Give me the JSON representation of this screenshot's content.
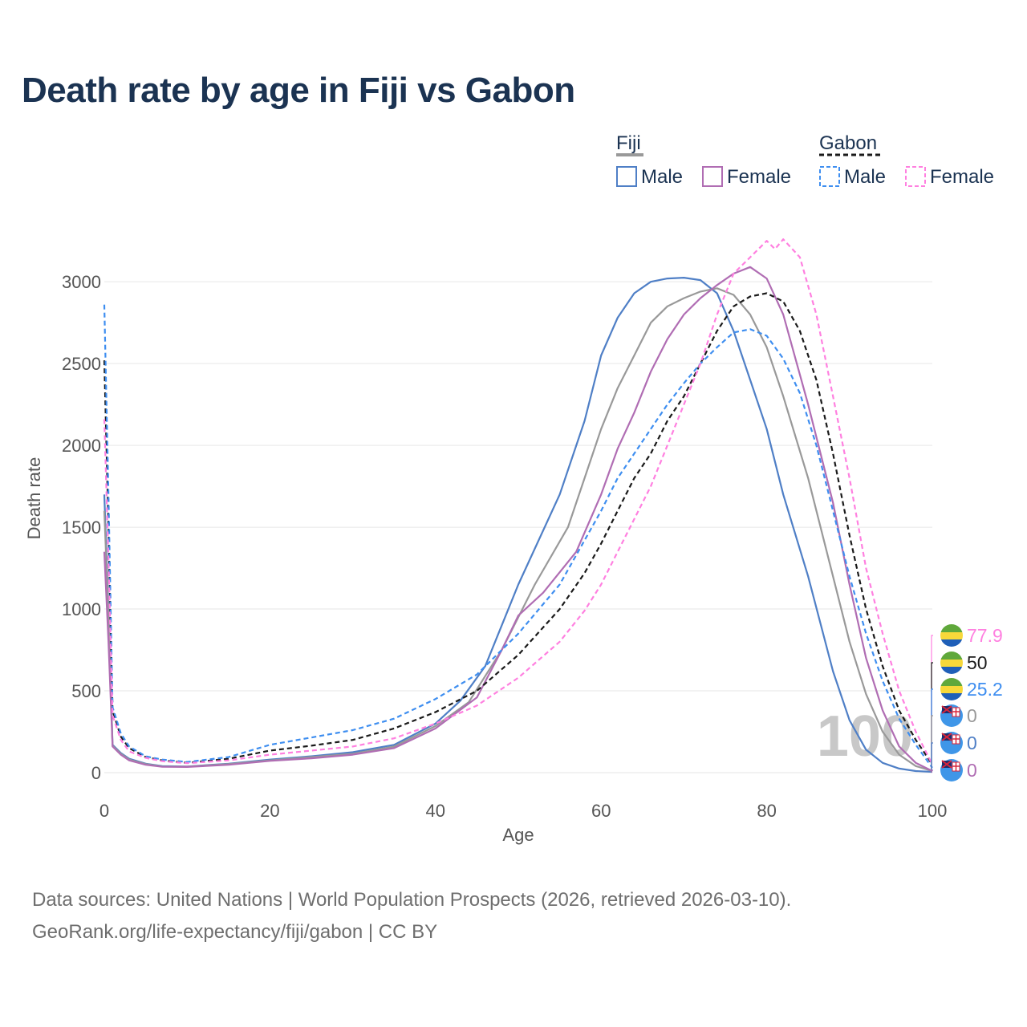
{
  "title": "Death rate by age in Fiji vs Gabon",
  "legend": {
    "group1": "Fiji",
    "group2": "Gabon",
    "items": [
      "Male",
      "Female",
      "Male",
      "Female"
    ]
  },
  "footer": {
    "source": "Data sources: United Nations | World Population Prospects (2026, retrieved 2026-03-10).",
    "link": "GeoRank.org/life-expectancy/fiji/gabon | CC BY"
  },
  "chart_data": {
    "type": "line",
    "xlabel": "Age",
    "ylabel": "Death rate",
    "xlim": [
      0,
      100
    ],
    "ylim": [
      0,
      3300
    ],
    "xticks": [
      0,
      20,
      40,
      60,
      80,
      100
    ],
    "yticks": [
      0,
      500,
      1000,
      1500,
      2000,
      2500,
      3000
    ],
    "watermark": "100",
    "series": [
      {
        "name": "Fiji Male",
        "color": "#4f7fc6",
        "dash": false,
        "x": [
          0,
          0.5,
          1,
          2,
          3,
          5,
          7,
          10,
          15,
          20,
          25,
          30,
          35,
          40,
          43,
          46,
          50,
          55,
          58,
          60,
          62,
          64,
          66,
          68,
          70,
          72,
          74,
          76,
          78,
          80,
          82,
          85,
          88,
          90,
          92,
          94,
          96,
          98,
          100
        ],
        "y": [
          1700,
          1000,
          170,
          120,
          85,
          55,
          40,
          38,
          55,
          80,
          100,
          125,
          170,
          300,
          440,
          650,
          1150,
          1700,
          2150,
          2550,
          2780,
          2930,
          3000,
          3020,
          3025,
          3010,
          2930,
          2700,
          2400,
          2100,
          1700,
          1200,
          620,
          320,
          140,
          60,
          25,
          10,
          5
        ]
      },
      {
        "name": "Fiji Total",
        "color": "#999999",
        "dash": false,
        "x": [
          0,
          0.5,
          1,
          2,
          3,
          5,
          7,
          10,
          15,
          20,
          25,
          30,
          35,
          40,
          44,
          48,
          52,
          56,
          58,
          60,
          62,
          64,
          66,
          68,
          70,
          72,
          74,
          76,
          78,
          80,
          82,
          85,
          88,
          90,
          92,
          94,
          96,
          98,
          100
        ],
        "y": [
          1600,
          950,
          165,
          115,
          80,
          52,
          38,
          37,
          52,
          75,
          95,
          115,
          160,
          285,
          430,
          750,
          1150,
          1500,
          1800,
          2100,
          2350,
          2550,
          2750,
          2850,
          2900,
          2940,
          2960,
          2920,
          2800,
          2600,
          2300,
          1800,
          1200,
          800,
          480,
          250,
          110,
          40,
          10
        ]
      },
      {
        "name": "Fiji Female",
        "color": "#b06db3",
        "dash": false,
        "x": [
          0,
          0.5,
          1,
          2,
          3,
          5,
          7,
          10,
          15,
          20,
          25,
          30,
          35,
          40,
          45,
          48,
          50,
          53,
          57,
          60,
          62,
          64,
          66,
          68,
          70,
          72,
          74,
          76,
          78,
          80,
          82,
          85,
          88,
          90,
          92,
          94,
          96,
          98,
          100
        ],
        "y": [
          1350,
          800,
          160,
          110,
          75,
          48,
          36,
          35,
          48,
          72,
          88,
          110,
          150,
          270,
          460,
          750,
          960,
          1100,
          1350,
          1700,
          1980,
          2200,
          2450,
          2650,
          2800,
          2900,
          2980,
          3050,
          3090,
          3020,
          2800,
          2250,
          1650,
          1150,
          700,
          380,
          160,
          60,
          10
        ]
      },
      {
        "name": "Gabon Total",
        "color": "#1a1a1a",
        "dash": true,
        "x": [
          0,
          0.5,
          1,
          2,
          3,
          5,
          7,
          10,
          15,
          20,
          25,
          30,
          35,
          40,
          45,
          50,
          55,
          58,
          60,
          62,
          64,
          66,
          68,
          70,
          72,
          74,
          76,
          78,
          80,
          82,
          84,
          86,
          88,
          90,
          92,
          94,
          96,
          98,
          100
        ],
        "y": [
          2520,
          1500,
          380,
          220,
          150,
          95,
          75,
          60,
          85,
          135,
          165,
          200,
          270,
          370,
          500,
          720,
          1000,
          1220,
          1400,
          1600,
          1800,
          1950,
          2150,
          2300,
          2500,
          2700,
          2850,
          2910,
          2930,
          2880,
          2700,
          2400,
          1950,
          1450,
          1000,
          650,
          380,
          200,
          50
        ]
      },
      {
        "name": "Gabon Male",
        "color": "#3e8ef0",
        "dash": true,
        "x": [
          0,
          0.5,
          1,
          2,
          3,
          5,
          7,
          10,
          15,
          20,
          25,
          30,
          35,
          40,
          45,
          50,
          55,
          60,
          62,
          64,
          66,
          68,
          70,
          72,
          74,
          76,
          78,
          80,
          82,
          84,
          86,
          88,
          90,
          92,
          94,
          96,
          98,
          100
        ],
        "y": [
          2860,
          1700,
          400,
          240,
          160,
          100,
          80,
          65,
          95,
          170,
          215,
          260,
          330,
          450,
          600,
          850,
          1150,
          1600,
          1800,
          1950,
          2100,
          2250,
          2380,
          2500,
          2600,
          2690,
          2710,
          2670,
          2530,
          2320,
          2000,
          1600,
          1200,
          850,
          560,
          330,
          170,
          30
        ]
      },
      {
        "name": "Gabon Female",
        "color": "#ff80e0",
        "dash": true,
        "x": [
          0,
          0.5,
          1,
          2,
          3,
          5,
          7,
          10,
          15,
          20,
          25,
          30,
          35,
          40,
          45,
          50,
          55,
          58,
          60,
          62,
          64,
          66,
          68,
          70,
          72,
          74,
          76,
          78,
          80,
          81,
          82,
          84,
          86,
          88,
          90,
          92,
          94,
          96,
          98,
          100
        ],
        "y": [
          2160,
          1300,
          350,
          200,
          130,
          90,
          70,
          58,
          75,
          110,
          135,
          160,
          210,
          300,
          410,
          580,
          800,
          990,
          1150,
          1350,
          1550,
          1750,
          2000,
          2250,
          2500,
          2800,
          3050,
          3150,
          3250,
          3200,
          3260,
          3150,
          2800,
          2300,
          1800,
          1250,
          850,
          500,
          250,
          50
        ]
      }
    ],
    "end_labels": [
      {
        "value": "77.9",
        "color": "#ff80e0",
        "flag": "Gabon"
      },
      {
        "value": "50",
        "color": "#1a1a1a",
        "flag": "Gabon"
      },
      {
        "value": "25.2",
        "color": "#3e8ef0",
        "flag": "Gabon"
      },
      {
        "value": "0",
        "color": "#999999",
        "flag": "Fiji"
      },
      {
        "value": "0",
        "color": "#4f7fc6",
        "flag": "Fiji"
      },
      {
        "value": "0",
        "color": "#b06db3",
        "flag": "Fiji"
      }
    ]
  }
}
